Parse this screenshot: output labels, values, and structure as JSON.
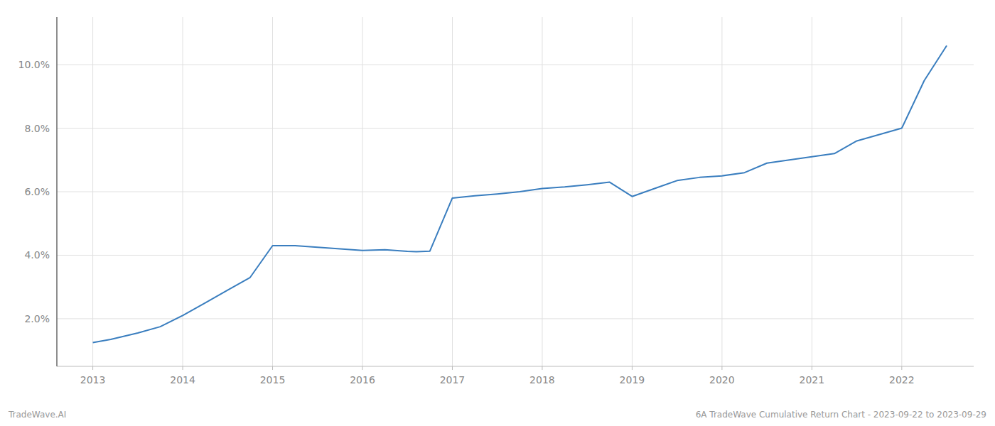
{
  "chart_data": {
    "type": "line",
    "x": [
      2013.0,
      2013.2,
      2013.5,
      2013.75,
      2014.0,
      2014.25,
      2014.5,
      2014.75,
      2015.0,
      2015.25,
      2015.5,
      2015.75,
      2016.0,
      2016.25,
      2016.5,
      2016.6,
      2016.75,
      2017.0,
      2017.25,
      2017.5,
      2017.75,
      2018.0,
      2018.25,
      2018.5,
      2018.75,
      2019.0,
      2019.25,
      2019.5,
      2019.75,
      2020.0,
      2020.25,
      2020.5,
      2020.75,
      2021.0,
      2021.25,
      2021.5,
      2021.75,
      2022.0,
      2022.25,
      2022.5
    ],
    "values": [
      1.25,
      1.35,
      1.55,
      1.75,
      2.1,
      2.5,
      2.9,
      3.3,
      4.3,
      4.3,
      4.25,
      4.2,
      4.15,
      4.17,
      4.12,
      4.11,
      4.13,
      5.8,
      5.87,
      5.93,
      6.0,
      6.1,
      6.15,
      6.22,
      6.3,
      5.85,
      6.1,
      6.35,
      6.45,
      6.5,
      6.6,
      6.9,
      7.0,
      7.1,
      7.2,
      7.6,
      7.8,
      8.0,
      9.5,
      10.6
    ],
    "color": "#3a7ebf",
    "xlim": [
      2012.6,
      2022.8
    ],
    "ylim": [
      0.5,
      11.5
    ],
    "xticks": [
      2013,
      2014,
      2015,
      2016,
      2017,
      2018,
      2019,
      2020,
      2021,
      2022
    ],
    "yticks": [
      {
        "value": 2.0,
        "label": "2.0%"
      },
      {
        "value": 4.0,
        "label": "4.0%"
      },
      {
        "value": 6.0,
        "label": "6.0%"
      },
      {
        "value": 8.0,
        "label": "8.0%"
      },
      {
        "value": 10.0,
        "label": "10.0%"
      }
    ],
    "grid": true,
    "annotations": [
      "TradeWave.AI",
      "6A TradeWave Cumulative Return Chart - 2023-09-22 to 2023-09-29"
    ]
  }
}
